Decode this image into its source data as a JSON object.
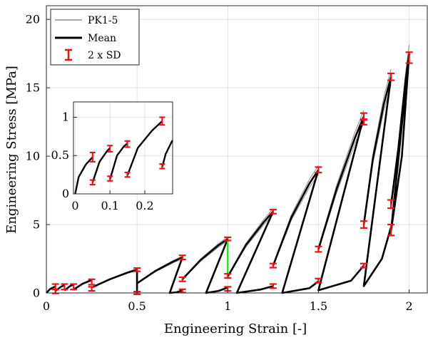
{
  "chart_data": [
    {
      "type": "line",
      "id": "main",
      "xlabel": "Engineering Strain [-]",
      "ylabel": "Engineering Stress [MPa]",
      "xlim": [
        0,
        2.1
      ],
      "ylim": [
        0,
        21
      ],
      "xticks": [
        0,
        0.5,
        1,
        1.5,
        2
      ],
      "xtick_labels": [
        "0",
        "0.5",
        "1",
        "1.5",
        "2"
      ],
      "yticks": [
        0,
        5,
        10,
        15,
        20
      ],
      "ytick_labels": [
        "0",
        "5",
        "10",
        "15",
        "20"
      ],
      "grid": true,
      "legend_position": "top-left",
      "legend": [
        {
          "label": "PK1-5",
          "style": "gray-line",
          "color": "#8a8a8a"
        },
        {
          "label": "Mean",
          "style": "black-line",
          "color": "#000000"
        },
        {
          "label": "2 x SD",
          "style": "red-errorbar",
          "color": "#e8141c"
        }
      ],
      "series": [
        {
          "name": "Mean",
          "color": "#000000",
          "cycles": [
            {
              "x": [
                0,
                0.02,
                0.05
              ],
              "y": [
                0,
                0.28,
                0.48
              ]
            },
            {
              "x": [
                0.05,
                0.08,
                0.1
              ],
              "y": [
                0.15,
                0.45,
                0.58
              ]
            },
            {
              "x": [
                0.1,
                0.13,
                0.15
              ],
              "y": [
                0.18,
                0.5,
                0.63
              ]
            },
            {
              "x": [
                0.15,
                0.2,
                0.25
              ],
              "y": [
                0.24,
                0.68,
                0.95
              ]
            },
            {
              "x": [
                0.25,
                0.35,
                0.45,
                0.5
              ],
              "y": [
                0.4,
                1.0,
                1.5,
                1.7
              ]
            },
            {
              "x": [
                0.5,
                0.6,
                0.7,
                0.75
              ],
              "y": [
                0.7,
                1.6,
                2.3,
                2.6
              ]
            },
            {
              "x": [
                0.75,
                0.85,
                0.95,
                1.0
              ],
              "y": [
                1.0,
                2.4,
                3.5,
                3.95
              ]
            },
            {
              "x": [
                1.0,
                1.1,
                1.2,
                1.25
              ],
              "y": [
                1.2,
                3.5,
                5.2,
                5.95
              ]
            },
            {
              "x": [
                1.25,
                1.35,
                1.45,
                1.5
              ],
              "y": [
                2.0,
                5.5,
                8.0,
                9.0
              ]
            },
            {
              "x": [
                1.5,
                1.6,
                1.7,
                1.75
              ],
              "y": [
                3.2,
                7.6,
                11.3,
                12.9
              ]
            },
            {
              "x": [
                1.75,
                1.8,
                1.86,
                1.9
              ],
              "y": [
                5.0,
                9.8,
                13.8,
                15.8
              ]
            },
            {
              "x": [
                1.9,
                1.94,
                1.98,
                2.0
              ],
              "y": [
                6.4,
                10.5,
                15.5,
                17.5
              ]
            }
          ],
          "unloading_paths": [
            {
              "x": [
                0.5,
                0.5
              ],
              "y": [
                1.7,
                0.0
              ]
            },
            {
              "x": [
                0.75,
                0.68,
                0.72,
                0.75
              ],
              "y": [
                2.6,
                0.0,
                0.05,
                0.2
              ]
            },
            {
              "x": [
                1.0,
                0.88,
                0.95,
                1.0
              ],
              "y": [
                3.95,
                0.0,
                0.15,
                0.4
              ]
            },
            {
              "x": [
                1.25,
                1.05,
                1.18,
                1.25
              ],
              "y": [
                5.95,
                0.0,
                0.25,
                0.5
              ]
            },
            {
              "x": [
                1.5,
                1.3,
                1.45,
                1.5
              ],
              "y": [
                9.0,
                0.0,
                0.35,
                0.85
              ]
            },
            {
              "x": [
                1.75,
                1.5,
                1.68,
                1.75
              ],
              "y": [
                12.9,
                0.2,
                0.9,
                2.0
              ]
            },
            {
              "x": [
                1.9,
                1.75,
                1.85,
                1.9
              ],
              "y": [
                15.8,
                0.5,
                2.5,
                4.8
              ]
            },
            {
              "x": [
                2.0,
                1.9,
                1.96,
                2.0
              ],
              "y": [
                17.5,
                4.5,
                10.0,
                17.5
              ]
            }
          ]
        },
        {
          "name": "PK1-5",
          "color": "#8a8a8a",
          "note": "individual specimen curves closely follow the mean"
        }
      ],
      "error_bars": [
        {
          "x": 0.05,
          "y": 0.45,
          "err": 0.2
        },
        {
          "x": 0.05,
          "y": 0.12,
          "err": 0.15
        },
        {
          "x": 0.1,
          "y": 0.45,
          "err": 0.2
        },
        {
          "x": 0.15,
          "y": 0.45,
          "err": 0.2
        },
        {
          "x": 0.25,
          "y": 0.8,
          "err": 0.2
        },
        {
          "x": 0.25,
          "y": 0.3,
          "err": 0.15
        },
        {
          "x": 0.5,
          "y": 1.7,
          "err": 0.12
        },
        {
          "x": 0.5,
          "y": 0.0,
          "err": 0.1
        },
        {
          "x": 0.75,
          "y": 2.6,
          "err": 0.15
        },
        {
          "x": 0.75,
          "y": 1.0,
          "err": 0.15
        },
        {
          "x": 0.75,
          "y": 0.15,
          "err": 0.12
        },
        {
          "x": 1.0,
          "y": 3.95,
          "err": 0.12
        },
        {
          "x": 1.0,
          "y": 1.25,
          "err": 0.15
        },
        {
          "x": 1.0,
          "y": 0.3,
          "err": 0.15
        },
        {
          "x": 1.25,
          "y": 5.95,
          "err": 0.15
        },
        {
          "x": 1.25,
          "y": 2.0,
          "err": 0.15
        },
        {
          "x": 1.25,
          "y": 0.5,
          "err": 0.15
        },
        {
          "x": 1.5,
          "y": 9.0,
          "err": 0.2
        },
        {
          "x": 1.5,
          "y": 3.2,
          "err": 0.2
        },
        {
          "x": 1.5,
          "y": 0.9,
          "err": 0.15
        },
        {
          "x": 1.75,
          "y": 12.9,
          "err": 0.25
        },
        {
          "x": 1.75,
          "y": 12.5,
          "err": 0.2
        },
        {
          "x": 1.75,
          "y": 5.0,
          "err": 0.25
        },
        {
          "x": 1.75,
          "y": 2.0,
          "err": 0.15
        },
        {
          "x": 1.9,
          "y": 15.8,
          "err": 0.25
        },
        {
          "x": 1.9,
          "y": 6.5,
          "err": 0.3
        },
        {
          "x": 1.9,
          "y": 4.6,
          "err": 0.4
        },
        {
          "x": 2.0,
          "y": 17.2,
          "err": 0.4
        }
      ],
      "highlight": {
        "x": 1.0,
        "y_from": 1.3,
        "y_to": 3.9,
        "color": "#33dd33"
      }
    },
    {
      "type": "line",
      "id": "inset",
      "xlim": [
        -0.005,
        0.28
      ],
      "ylim": [
        0,
        1.2
      ],
      "xticks": [
        0,
        0.1,
        0.2
      ],
      "xtick_labels": [
        "0",
        "0.1",
        "0.2"
      ],
      "yticks": [
        0,
        0.5,
        1
      ],
      "ytick_labels": [
        "0",
        "0.5",
        "1"
      ],
      "grid": true,
      "series": [
        {
          "name": "Mean",
          "color": "#000000",
          "cycles": [
            {
              "x": [
                0,
                0.01,
                0.03,
                0.05
              ],
              "y": [
                0,
                0.22,
                0.38,
                0.48
              ]
            },
            {
              "x": [
                0.05,
                0.07,
                0.09,
                0.1
              ],
              "y": [
                0.15,
                0.42,
                0.55,
                0.6
              ]
            },
            {
              "x": [
                0.1,
                0.12,
                0.14,
                0.15
              ],
              "y": [
                0.19,
                0.5,
                0.62,
                0.66
              ]
            },
            {
              "x": [
                0.15,
                0.18,
                0.22,
                0.25
              ],
              "y": [
                0.24,
                0.6,
                0.82,
                0.95
              ]
            },
            {
              "x": [
                0.25,
                0.26,
                0.275,
                0.28
              ],
              "y": [
                0.35,
                0.52,
                0.66,
                0.7
              ]
            }
          ]
        }
      ],
      "error_bars": [
        {
          "x": 0.05,
          "y": 0.48,
          "err": 0.06
        },
        {
          "x": 0.05,
          "y": 0.15,
          "err": 0.03
        },
        {
          "x": 0.1,
          "y": 0.59,
          "err": 0.04
        },
        {
          "x": 0.1,
          "y": 0.2,
          "err": 0.03
        },
        {
          "x": 0.15,
          "y": 0.65,
          "err": 0.04
        },
        {
          "x": 0.15,
          "y": 0.25,
          "err": 0.03
        },
        {
          "x": 0.25,
          "y": 0.95,
          "err": 0.05
        },
        {
          "x": 0.25,
          "y": 0.36,
          "err": 0.03
        }
      ]
    }
  ]
}
